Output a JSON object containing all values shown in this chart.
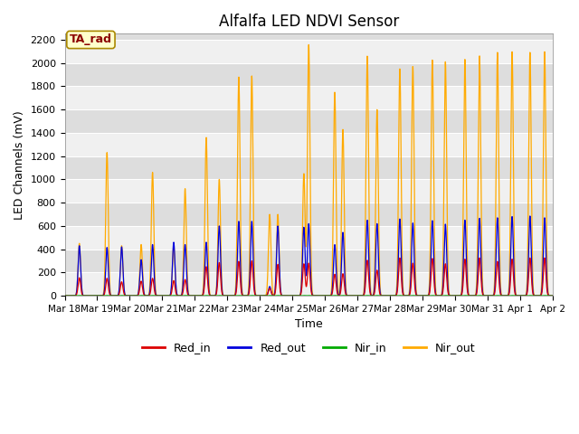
{
  "title": "Alfalfa LED NDVI Sensor",
  "xlabel": "Time",
  "ylabel": "LED Channels (mV)",
  "ylim": [
    0,
    2250
  ],
  "yticks": [
    0,
    200,
    400,
    600,
    800,
    1000,
    1200,
    1400,
    1600,
    1800,
    2000,
    2200
  ],
  "date_labels": [
    "Mar 18",
    "Mar 19",
    "Mar 20",
    "Mar 21",
    "Mar 22",
    "Mar 23",
    "Mar 24",
    "Mar 25",
    "Mar 26",
    "Mar 27",
    "Mar 28",
    "Mar 29",
    "Mar 30",
    "Mar 31",
    "Apr 1",
    "Apr 2"
  ],
  "legend_labels": [
    "Red_in",
    "Red_out",
    "Nir_in",
    "Nir_out"
  ],
  "legend_colors": [
    "#dd0000",
    "#0000dd",
    "#00aa00",
    "#ffaa00"
  ],
  "line_colors": [
    "#dd0000",
    "#0000dd",
    "#00aa00",
    "#ffaa00"
  ],
  "ta_rad_text": "TA_rad",
  "ta_rad_text_color": "#8b0000",
  "ta_rad_box_color": "#ffffcc",
  "ta_rad_border_color": "#aa8800",
  "background_color": "#ffffff",
  "plot_bg_color": "#dddddd",
  "band_color": "#f0f0f0",
  "band_alpha": 1.0,
  "title_fontsize": 12,
  "spikes": [
    [
      0.45,
      450,
      430,
      155,
      2
    ],
    [
      1.3,
      1230,
      415,
      150,
      2
    ],
    [
      1.75,
      430,
      420,
      120,
      2
    ],
    [
      2.35,
      440,
      310,
      125,
      2
    ],
    [
      2.7,
      1060,
      440,
      150,
      2
    ],
    [
      3.35,
      430,
      460,
      130,
      2
    ],
    [
      3.7,
      920,
      440,
      140,
      2
    ],
    [
      4.35,
      1360,
      460,
      250,
      2
    ],
    [
      4.75,
      1000,
      600,
      285,
      2
    ],
    [
      5.35,
      1880,
      640,
      295,
      2
    ],
    [
      5.75,
      1890,
      640,
      300,
      2
    ],
    [
      6.3,
      700,
      80,
      65,
      2
    ],
    [
      6.55,
      700,
      600,
      270,
      2
    ],
    [
      7.35,
      1050,
      590,
      275,
      2
    ],
    [
      7.5,
      2160,
      620,
      280,
      2
    ],
    [
      8.3,
      1750,
      440,
      185,
      2
    ],
    [
      8.55,
      1430,
      545,
      190,
      2
    ],
    [
      9.3,
      2060,
      650,
      305,
      2
    ],
    [
      9.6,
      1600,
      620,
      220,
      2
    ],
    [
      10.3,
      1950,
      660,
      325,
      2
    ],
    [
      10.7,
      1970,
      625,
      280,
      2
    ],
    [
      11.3,
      2025,
      645,
      320,
      2
    ],
    [
      11.7,
      2010,
      615,
      275,
      2
    ],
    [
      12.3,
      2030,
      650,
      315,
      2
    ],
    [
      12.75,
      2060,
      665,
      325,
      2
    ],
    [
      13.3,
      2090,
      670,
      295,
      2
    ],
    [
      13.75,
      2095,
      680,
      315,
      2
    ],
    [
      14.3,
      2090,
      685,
      325,
      2
    ],
    [
      14.75,
      2095,
      670,
      325,
      2
    ]
  ]
}
